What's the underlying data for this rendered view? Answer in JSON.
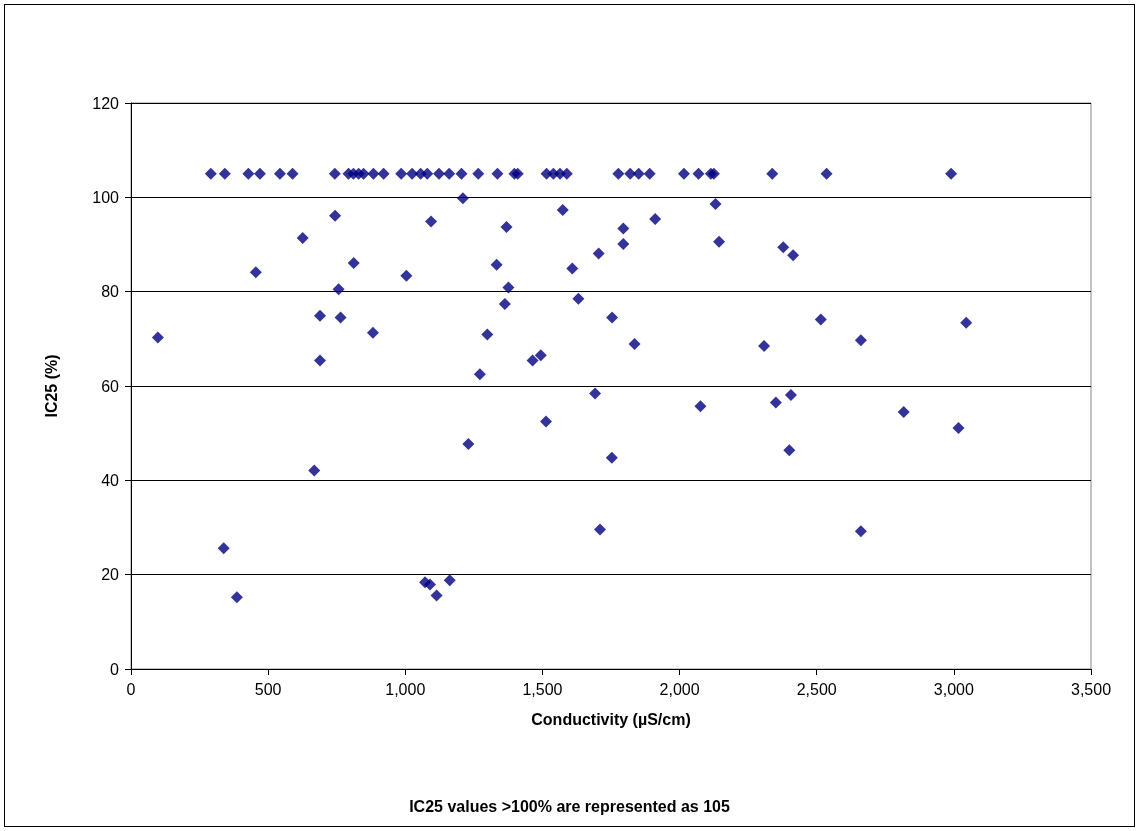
{
  "chart_data": {
    "type": "scatter",
    "xlabel": "Conductivity (µS/cm)",
    "ylabel": "IC25 (%)",
    "annotations": [
      "IC25 values >100% are represented as 105"
    ],
    "xlim": [
      0,
      3500
    ],
    "xticks": [
      0,
      500,
      {
        "value": 1000,
        "label": "1,000"
      },
      {
        "value": 1500,
        "label": "1,500"
      },
      {
        "value": 2000,
        "label": "2,000"
      },
      {
        "value": 2500,
        "label": "2,500"
      },
      {
        "value": 3000,
        "label": "3,000"
      },
      {
        "value": 3500,
        "label": "3,500"
      }
    ],
    "ylim": [
      0,
      120
    ],
    "yticks": [
      0,
      20,
      40,
      60,
      80,
      100,
      120
    ],
    "grid": "y",
    "marker": "diamond",
    "series": [
      {
        "color": "#000080",
        "x": [
          291,
          342,
          428,
          470,
          543,
          589,
          743,
          793,
          811,
          830,
          848,
          884,
          921,
          985,
          1025,
          1056,
          1080,
          1123,
          1160,
          1205,
          1266,
          1336,
          1398,
          1410,
          1515,
          1540,
          1564,
          1589,
          1777,
          1820,
          1851,
          1891,
          2016,
          2069,
          2114,
          2125,
          2338,
          2536,
          2990,
          98,
          455,
          626,
          689,
          689,
          744,
          757,
          764,
          812,
          882,
          1004,
          1094,
          1210,
          1272,
          1299,
          1333,
          1363,
          1369,
          1376,
          1464,
          1494,
          1513,
          1574,
          1609,
          1631,
          1692,
          1705,
          1754,
          1795,
          1795,
          2131,
          1911,
          2144,
          2378,
          2414,
          1836,
          2308,
          2515,
          2661,
          3045,
          2076,
          2351,
          2406,
          2817,
          3017,
          668,
          1230,
          1753,
          1710,
          338,
          386,
          1072,
          1090,
          1114,
          1162,
          2400,
          2661
        ],
        "values": [
          105,
          105,
          105,
          105,
          105,
          105,
          105,
          105,
          105,
          105,
          105,
          105,
          105,
          105,
          105,
          105,
          105,
          105,
          105,
          105,
          105,
          105,
          105,
          105,
          105,
          105,
          105,
          105,
          105,
          105,
          105,
          105,
          105,
          105,
          105,
          105,
          105,
          105,
          105,
          70.3,
          84.1,
          91.4,
          74.9,
          65.4,
          96.1,
          80.5,
          74.5,
          86.1,
          71.3,
          83.4,
          94.9,
          99.8,
          62.5,
          70.9,
          85.7,
          77.4,
          93.7,
          80.9,
          65.4,
          66.5,
          52.5,
          97.3,
          84.9,
          78.5,
          58.4,
          88.1,
          74.5,
          93.4,
          90.1,
          98.6,
          95.4,
          90.6,
          89.4,
          87.7,
          68.9,
          68.5,
          74.1,
          69.7,
          73.4,
          55.7,
          56.5,
          58.1,
          54.5,
          51.1,
          42.1,
          47.7,
          44.8,
          29.6,
          25.6,
          15.2,
          18.4,
          17.9,
          15.6,
          18.8,
          46.4,
          29.2
        ]
      }
    ]
  }
}
